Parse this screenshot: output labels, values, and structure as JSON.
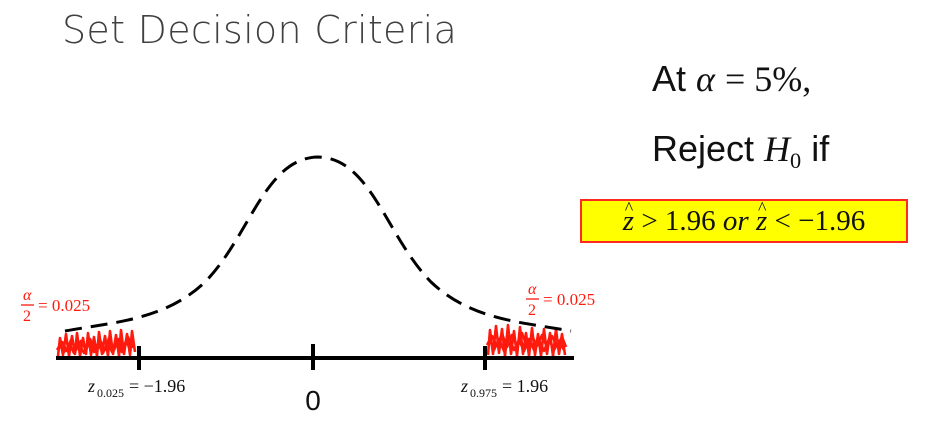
{
  "title": "Set Decision Criteria",
  "condition": {
    "line1_prefix": "At ",
    "alpha_symbol": "α",
    "line1_value": "= 5%,",
    "line2_prefix": "Reject ",
    "hypothesis_letter": "H",
    "hypothesis_sub": "0",
    "line2_suffix": " if"
  },
  "rule": {
    "z_hat_1": "z",
    "gt_value": " > 1.96 ",
    "or_word": "or",
    "z_hat_2": "z",
    "lt_value": " < −1.96"
  },
  "tails": {
    "alpha_num": "α",
    "alpha_den": "2",
    "left_value": "= 0.025",
    "right_value": "= 0.025"
  },
  "axis": {
    "center_label": "0",
    "left_z": "z",
    "left_sub": "0.025",
    "left_value": " = −1.96",
    "right_z": "z",
    "right_sub": "0.975",
    "right_value": " = 1.96"
  },
  "colors": {
    "highlight_fill": "#ffff00",
    "highlight_border": "#ff2a1f",
    "tail_red": "#ff1a0e",
    "curve": "#000000"
  }
}
